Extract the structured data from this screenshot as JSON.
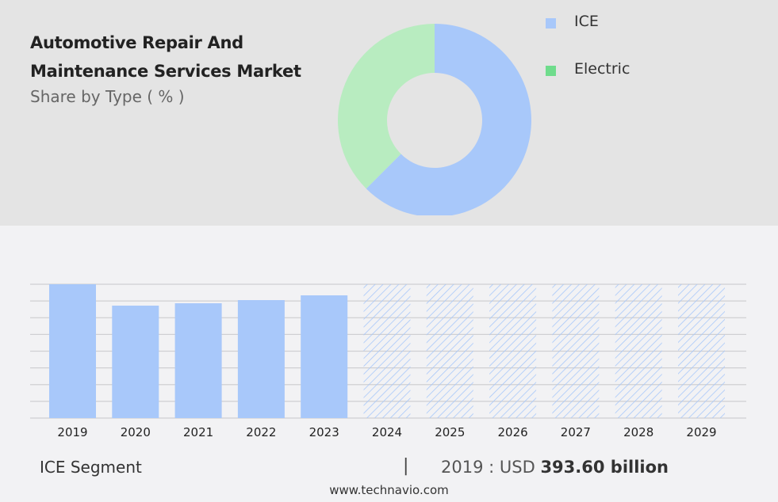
{
  "header": {
    "title_line1": "Automotive Repair And",
    "title_line2": "Maintenance Services Market",
    "subtitle": "Share by Type ( % )"
  },
  "chart_data": [
    {
      "type": "pie",
      "variant": "donut",
      "labels": [
        "ICE",
        "Electric"
      ],
      "values": [
        62.5,
        37.5
      ],
      "colors": [
        "#a8c8fa",
        "#b8ecc0"
      ],
      "legend_colors": [
        "#a8c8fa",
        "#6fdc8c"
      ],
      "legend_position": "right"
    },
    {
      "type": "bar",
      "categories": [
        "2019",
        "2020",
        "2021",
        "2022",
        "2023",
        "2024",
        "2025",
        "2026",
        "2027",
        "2028",
        "2029"
      ],
      "values": [
        393.6,
        330.7,
        337.7,
        347.0,
        361.0,
        null,
        null,
        null,
        null,
        null,
        null
      ],
      "forecast": [
        false,
        false,
        false,
        false,
        false,
        true,
        true,
        true,
        true,
        true,
        true
      ],
      "color": "#a8c8fa",
      "ylim": [
        0,
        393.6
      ],
      "grid": true,
      "xlabel": "",
      "ylabel": ""
    }
  ],
  "footer": {
    "segment": "ICE Segment",
    "separator": "|",
    "year_label": "2019 : USD",
    "value": "393.60 billion",
    "website": "www.technavio.com"
  }
}
